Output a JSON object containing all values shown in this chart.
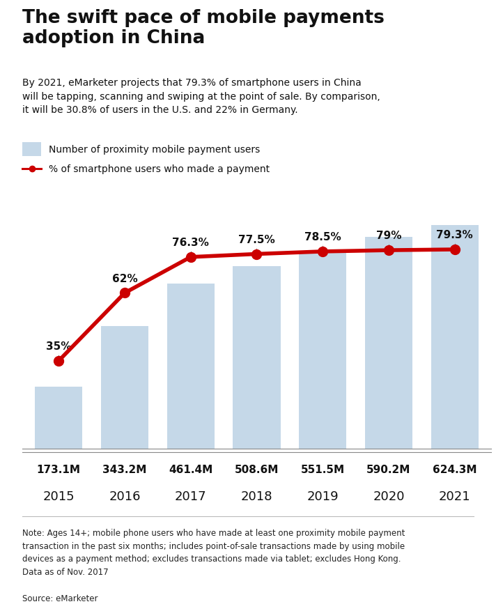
{
  "title": "The swift pace of mobile payments\nadoption in China",
  "subtitle": "By 2021, eMarketer projects that 79.3% of smartphone users in China\nwill be tapping, scanning and swiping at the point of sale. By comparison,\nit will be 30.8% of users in the U.S. and 22% in Germany.",
  "years": [
    2015,
    2016,
    2017,
    2018,
    2019,
    2020,
    2021
  ],
  "bar_values": [
    173.1,
    343.2,
    461.4,
    508.6,
    551.5,
    590.2,
    624.3
  ],
  "bar_labels": [
    "173.1M",
    "343.2M",
    "461.4M",
    "508.6M",
    "551.5M",
    "590.2M",
    "624.3M"
  ],
  "pct_values": [
    35,
    62,
    76.3,
    77.5,
    78.5,
    79,
    79.3
  ],
  "pct_labels": [
    "35%",
    "62%",
    "76.3%",
    "77.5%",
    "78.5%",
    "79%",
    "79.3%"
  ],
  "bar_color": "#c5d8e8",
  "line_color": "#cc0000",
  "marker_color": "#cc0000",
  "bg_color": "#ffffff",
  "legend_bar_label": "Number of proximity mobile payment users",
  "legend_line_label": "% of smartphone users who made a payment",
  "note": "Note: Ages 14+; mobile phone users who have made at least one proximity mobile payment\ntransaction in the past six months; includes point-of-sale transactions made by using mobile\ndevices as a payment method; excludes transactions made via tablet; excludes Hong Kong.\nData as of Nov. 2017",
  "source": "Source: eMarketer",
  "bar_ylim": [
    0,
    750
  ],
  "pct_ylim": [
    0,
    107
  ]
}
